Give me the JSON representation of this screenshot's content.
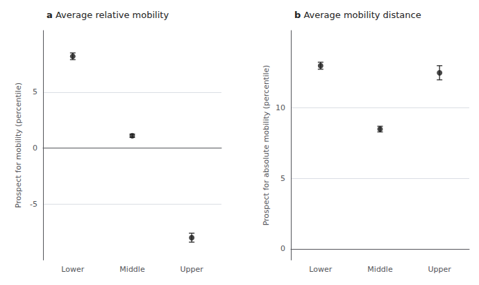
{
  "chart_data": [
    {
      "type": "scatter",
      "title_label": "a",
      "title": "Average relative mobility",
      "categories": [
        "Lower",
        "Middle",
        "Upper"
      ],
      "values": [
        8.2,
        1.1,
        -8.0
      ],
      "errors": [
        0.3,
        0.15,
        0.4
      ],
      "ylabel": "Prospect for mobility (percentile)",
      "ylim": [
        -10.0,
        10.5
      ],
      "yticks": [
        -5,
        0,
        5
      ],
      "grid": true,
      "color": "#1a1a1a"
    },
    {
      "type": "scatter",
      "title_label": "b",
      "title": "Average mobility distance",
      "categories": [
        "Lower",
        "Middle",
        "Upper"
      ],
      "values": [
        13.0,
        8.5,
        12.5
      ],
      "errors": [
        0.25,
        0.2,
        0.5
      ],
      "ylabel": "Prospect for absolute mobility (percentile)",
      "ylim": [
        -0.8,
        15.5
      ],
      "yticks": [
        0,
        5,
        10
      ],
      "grid": true,
      "color": "#1a1a1a"
    }
  ]
}
